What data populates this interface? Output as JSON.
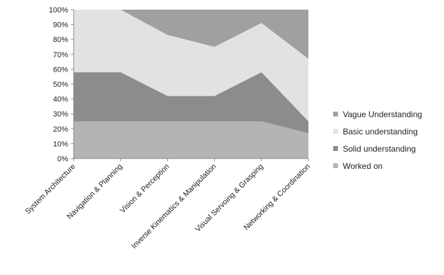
{
  "chart_data": {
    "type": "area",
    "stacked": true,
    "categories": [
      "System Architecture",
      "Navigation & Planning",
      "Vision & Perception",
      "Inverse Kinematics & Manipulation",
      "Visual Servoing & Grasping",
      "Networking & Coordination"
    ],
    "series": [
      {
        "name": "Worked on",
        "color": "#b4b4b4",
        "values": [
          25,
          25,
          25,
          25,
          25,
          17
        ]
      },
      {
        "name": "Solid understanding",
        "color": "#8c8c8c",
        "values": [
          33,
          33,
          17,
          17,
          33,
          8
        ]
      },
      {
        "name": "Basic understanding",
        "color": "#e2e2e2",
        "values": [
          42,
          42,
          41,
          33,
          33,
          42
        ]
      },
      {
        "name": "Vague Understanding",
        "color": "#a0a0a0",
        "values": [
          0,
          0,
          17,
          25,
          9,
          33
        ]
      }
    ],
    "legend_order": [
      "Vague Understanding",
      "Basic understanding",
      "Solid understanding",
      "Worked on"
    ],
    "y_ticks": [
      "0%",
      "10%",
      "20%",
      "30%",
      "40%",
      "50%",
      "60%",
      "70%",
      "80%",
      "90%",
      "100%"
    ],
    "ylim": [
      0,
      100
    ],
    "grid": false,
    "legend_position": "right"
  }
}
